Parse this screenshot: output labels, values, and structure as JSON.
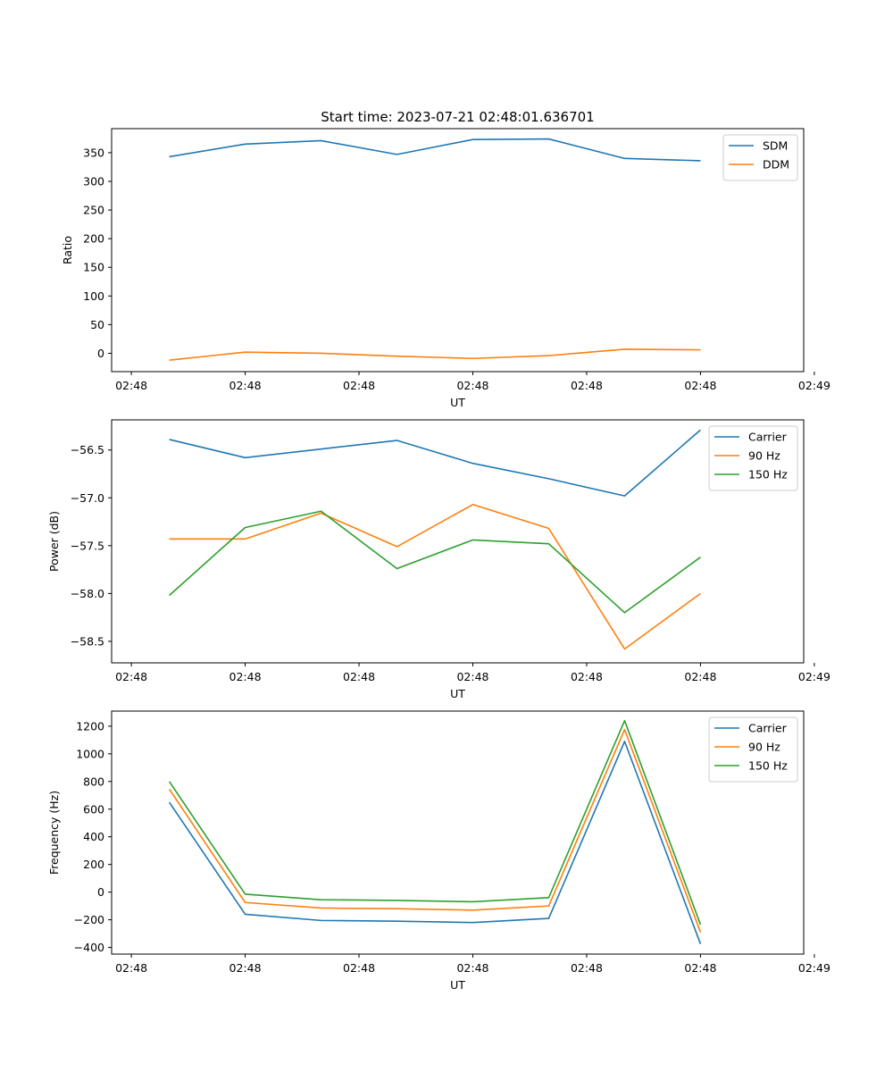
{
  "figure_title": "Start time: 2023-07-21 02:48:01.636701",
  "colors": {
    "blue": "#1f77b4",
    "orange": "#ff7f0e",
    "green": "#2ca02c"
  },
  "chart_data": [
    {
      "type": "line",
      "title": "Start time: 2023-07-21 02:48:01.636701",
      "xlabel": "UT",
      "ylabel": "Ratio",
      "x_tick_labels": [
        "02:48",
        "02:48",
        "02:48",
        "02:48",
        "02:48",
        "02:48",
        "02:49"
      ],
      "x_positions": [
        1,
        2,
        3,
        4,
        5,
        6,
        7,
        8
      ],
      "xlim": [
        0.24,
        9.36
      ],
      "x_tick_values": [
        0.5,
        2,
        3.5,
        5,
        6.5,
        8,
        9.5
      ],
      "ylim": [
        -32,
        392
      ],
      "y_ticks": [
        0,
        50,
        100,
        150,
        200,
        250,
        300,
        350
      ],
      "legend_position": "upper right",
      "series": [
        {
          "name": "SDM",
          "color": "#1f77b4",
          "values": [
            343,
            365,
            371,
            347,
            373,
            374,
            340,
            336
          ]
        },
        {
          "name": "DDM",
          "color": "#ff7f0e",
          "values": [
            -12,
            2,
            0,
            -5,
            -9,
            -4,
            7,
            6
          ]
        }
      ]
    },
    {
      "type": "line",
      "title": "",
      "xlabel": "UT",
      "ylabel": "Power (dB)",
      "x_tick_labels": [
        "02:48",
        "02:48",
        "02:48",
        "02:48",
        "02:48",
        "02:48",
        "02:49"
      ],
      "x_positions": [
        1,
        2,
        3,
        4,
        5,
        6,
        7,
        8
      ],
      "xlim": [
        0.24,
        9.36
      ],
      "x_tick_values": [
        0.5,
        2,
        3.5,
        5,
        6.5,
        8,
        9.5
      ],
      "ylim": [
        -58.725,
        -56.185
      ],
      "y_ticks": [
        -56.5,
        -57.0,
        -57.5,
        -58.0,
        -58.5
      ],
      "y_tick_labels": [
        "−56.5",
        "−57.0",
        "−57.5",
        "−58.0",
        "−58.5"
      ],
      "legend_position": "upper right",
      "series": [
        {
          "name": "Carrier",
          "color": "#1f77b4",
          "values": [
            -56.39,
            -56.58,
            -56.49,
            -56.4,
            -56.64,
            -56.8,
            -56.98,
            -56.29
          ]
        },
        {
          "name": "90 Hz",
          "color": "#ff7f0e",
          "values": [
            -57.43,
            -57.43,
            -57.16,
            -57.51,
            -57.07,
            -57.32,
            -58.58,
            -58.0
          ]
        },
        {
          "name": "150 Hz",
          "color": "#2ca02c",
          "values": [
            -58.02,
            -57.31,
            -57.14,
            -57.74,
            -57.44,
            -57.48,
            -58.2,
            -57.62
          ]
        }
      ]
    },
    {
      "type": "line",
      "title": "",
      "xlabel": "UT",
      "ylabel": "Frequency (Hz)",
      "x_tick_labels": [
        "02:48",
        "02:48",
        "02:48",
        "02:48",
        "02:48",
        "02:48",
        "02:49"
      ],
      "x_positions": [
        1,
        2,
        3,
        4,
        5,
        6,
        7,
        8
      ],
      "xlim": [
        0.24,
        9.36
      ],
      "x_tick_values": [
        0.5,
        2,
        3.5,
        5,
        6.5,
        8,
        9.5
      ],
      "ylim": [
        -448,
        1309
      ],
      "y_ticks": [
        1200,
        1000,
        800,
        600,
        400,
        200,
        0,
        -200,
        -400
      ],
      "y_tick_labels": [
        "1200",
        "1000",
        "800",
        "600",
        "400",
        "200",
        "0",
        "−200",
        "−400"
      ],
      "legend_position": "upper right",
      "series": [
        {
          "name": "Carrier",
          "color": "#1f77b4",
          "values": [
            650,
            -160,
            -205,
            -210,
            -220,
            -190,
            1090,
            -375
          ]
        },
        {
          "name": "90 Hz",
          "color": "#ff7f0e",
          "values": [
            745,
            -75,
            -115,
            -120,
            -130,
            -100,
            1175,
            -290
          ]
        },
        {
          "name": "150 Hz",
          "color": "#2ca02c",
          "values": [
            800,
            -15,
            -55,
            -60,
            -70,
            -40,
            1240,
            -235
          ]
        }
      ]
    }
  ]
}
